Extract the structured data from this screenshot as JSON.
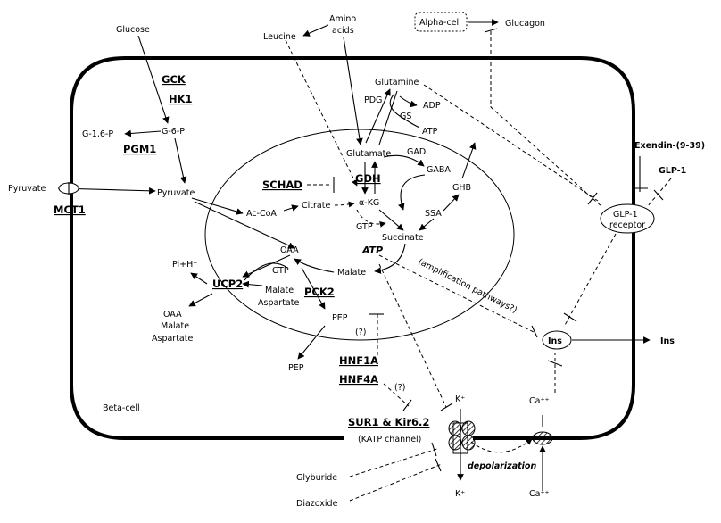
{
  "metabolites": {
    "glucose": "Glucose",
    "amino_acids_1": "Amino",
    "amino_acids_2": "acids",
    "leucine": "Leucine",
    "glutamine": "Glutamine",
    "adp": "ADP",
    "atp_small": "ATP",
    "pdg": "PDG",
    "gs": "GS",
    "g16p": "G-1,6-P",
    "g6p": "G-6-P",
    "pyruvate_out": "Pyruvate",
    "pyruvate_in": "Pyruvate",
    "glutamate": "Glutamate",
    "gad": "GAD",
    "gaba": "GABA",
    "ghb": "GHB",
    "ssa": "SSA",
    "akg": "α-KG",
    "citrate": "Citrate",
    "acoa": "Ac-CoA",
    "gtp_center": "GTP",
    "succinate": "Succinate",
    "atp_big": "ATP",
    "oaa_in": "OAA",
    "gtp_left": "GTP",
    "malate_in": "Malate",
    "pih": "Pi+H⁺",
    "malate_asp_1": "Malate",
    "malate_asp_2": "Aspartate",
    "oaa_out": "OAA",
    "malate_out": "Malate",
    "aspartate_out": "Aspartate",
    "pep_in": "PEP",
    "pep_out": "PEP",
    "question1": "(?)",
    "question2": "(?)",
    "amplification": "(amplification pathways?)",
    "glucagon": "Glucagon",
    "alpha_cell": "Alpha-cell",
    "exendin": "Exendin-(9-39)",
    "glp1": "GLP-1",
    "receptor_1": "GLP-1",
    "receptor_2": "receptor",
    "ins": "Ins",
    "ins_out": "Ins",
    "k_in": "K⁺",
    "k_out": "K⁺",
    "ca_in": "Ca⁺⁺",
    "ca_out": "Ca⁺⁺",
    "katp": "(KATP channel)",
    "depolarization": "depolarization",
    "glyburide": "Glyburide",
    "diazoxide": "Diazoxide",
    "beta_cell": "Beta-cell"
  },
  "genes": {
    "gck": "GCK",
    "hk1": "HK1",
    "pgm1": "PGM1",
    "mct1": "MCT1",
    "schad": "SCHAD",
    "gdh": "GDH",
    "ucp2": "UCP2",
    "pck2": "PCK2",
    "hnf1a": "HNF1A",
    "hnf4a": "HNF4A",
    "sur1": "SUR1 & Kir6.2"
  }
}
